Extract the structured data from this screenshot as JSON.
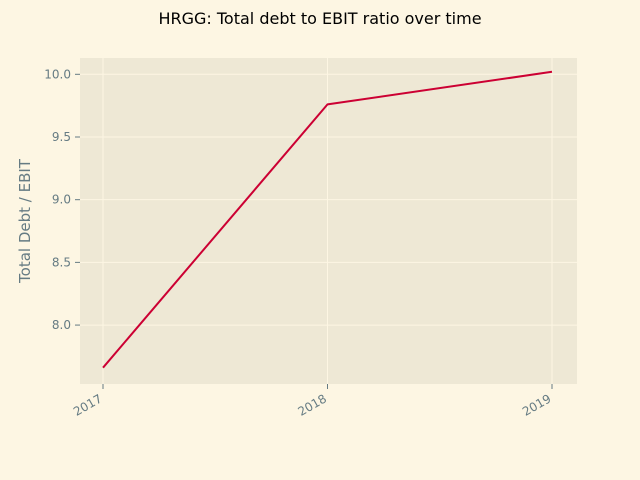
{
  "chart_data": {
    "type": "line",
    "title": "HRGG: Total debt to EBIT ratio over time",
    "xlabel": "",
    "ylabel": "Total Debt / EBIT",
    "categories": [
      "2017",
      "2018",
      "2019"
    ],
    "series": [
      {
        "values": [
          7.66,
          9.76,
          10.02
        ],
        "color": "#cc0033"
      }
    ],
    "yticks": [
      8.0,
      8.5,
      9.0,
      9.5,
      10.0
    ],
    "ytick_labels": [
      "8.0",
      "8.5",
      "9.0",
      "9.5",
      "10.0"
    ],
    "ylim": [
      7.53,
      10.13
    ],
    "grid": true,
    "colors": {
      "figure_bg": "#fdf6e3",
      "axes_bg": "#eee8d5",
      "text": "#657b83",
      "line": "#cc0033"
    }
  }
}
